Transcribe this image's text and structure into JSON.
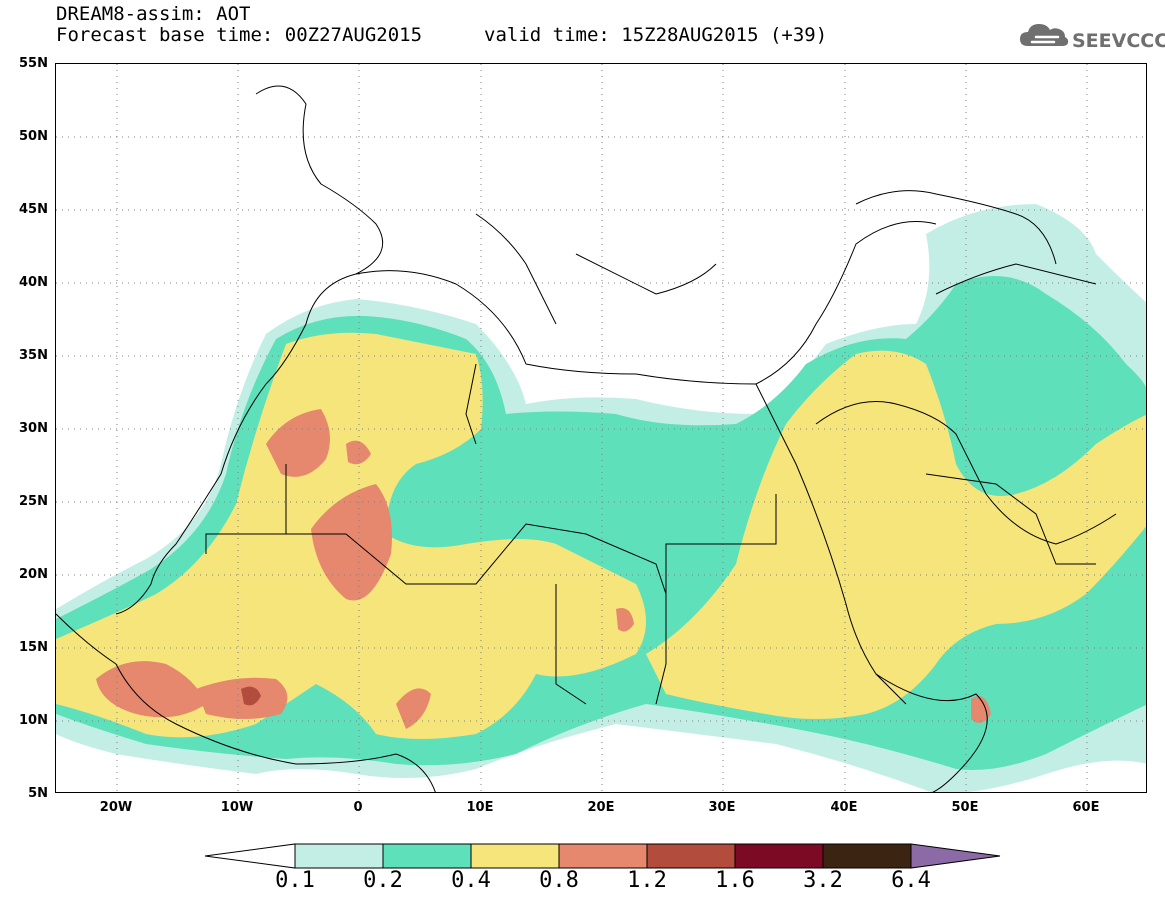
{
  "header": {
    "title": "DREAM8-assim: AOT",
    "base_time": "Forecast base time: 00Z27AUG2015",
    "valid_time": "valid time: 15Z28AUG2015 (+39)"
  },
  "logo": {
    "text": "SEEVCCC",
    "icon": "cloud-icon"
  },
  "axes": {
    "lat_labels": [
      "55N",
      "50N",
      "45N",
      "40N",
      "35N",
      "30N",
      "25N",
      "20N",
      "15N",
      "10N",
      "5N"
    ],
    "lat_values": [
      55,
      50,
      45,
      40,
      35,
      30,
      25,
      20,
      15,
      10,
      5
    ],
    "lon_labels": [
      "20W",
      "10W",
      "0",
      "10E",
      "20E",
      "30E",
      "40E",
      "50E",
      "60E"
    ],
    "lon_values": [
      -20,
      -10,
      0,
      10,
      20,
      30,
      40,
      50,
      60
    ],
    "lon_range": [
      -25,
      65
    ],
    "lat_range": [
      5,
      55
    ]
  },
  "colorbar": {
    "labels": [
      "0.1",
      "0.2",
      "0.4",
      "0.8",
      "1.2",
      "1.6",
      "3.2",
      "6.4"
    ],
    "colors": [
      "#c3eee6",
      "#5ee0bb",
      "#f5e57b",
      "#e6886d",
      "#b24c3c",
      "#7d0a25",
      "#3c2413",
      "#8b6aa6"
    ]
  },
  "map_colors": {
    "c1": "#c3eee6",
    "c2": "#5ee0bb",
    "c3": "#f5e57b",
    "c4": "#e6886d",
    "c5": "#b24c3c"
  }
}
